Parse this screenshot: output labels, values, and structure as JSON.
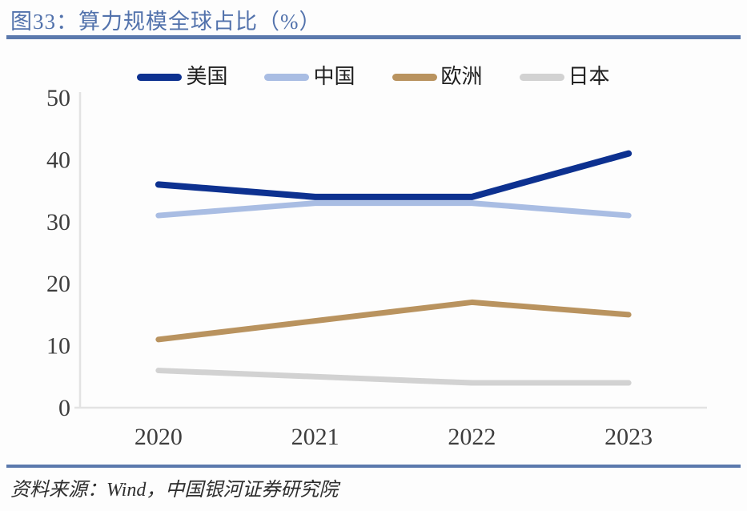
{
  "page": {
    "title": "图33：算力规模全球占比（%）",
    "source": "资料来源：Wind，中国银河证券研究院"
  },
  "colors": {
    "accent_divider": "#5b79ad",
    "title_text": "#5272ac",
    "axis_line": "#e3e3e3",
    "tick_text": "#3d3d3d"
  },
  "chart_data": {
    "type": "line",
    "title": "算力规模全球占比（%）",
    "categories": [
      "2020",
      "2021",
      "2022",
      "2023"
    ],
    "series": [
      {
        "key": "usa",
        "name": "美国",
        "color": "#0d3190",
        "values": [
          36,
          34,
          34,
          41
        ]
      },
      {
        "key": "china",
        "name": "中国",
        "color": "#a9bde3",
        "values": [
          31,
          33,
          33,
          31
        ]
      },
      {
        "key": "europe",
        "name": "欧洲",
        "color": "#b9935f",
        "values": [
          11,
          14,
          17,
          15
        ]
      },
      {
        "key": "japan",
        "name": "日本",
        "color": "#d2d2d2",
        "values": [
          6,
          5,
          4,
          4
        ]
      }
    ],
    "xlabel": "",
    "ylabel": "",
    "ylim": [
      0,
      50
    ],
    "yticks": [
      0,
      10,
      20,
      30,
      40,
      50
    ],
    "grid": false,
    "legend_position": "top"
  }
}
